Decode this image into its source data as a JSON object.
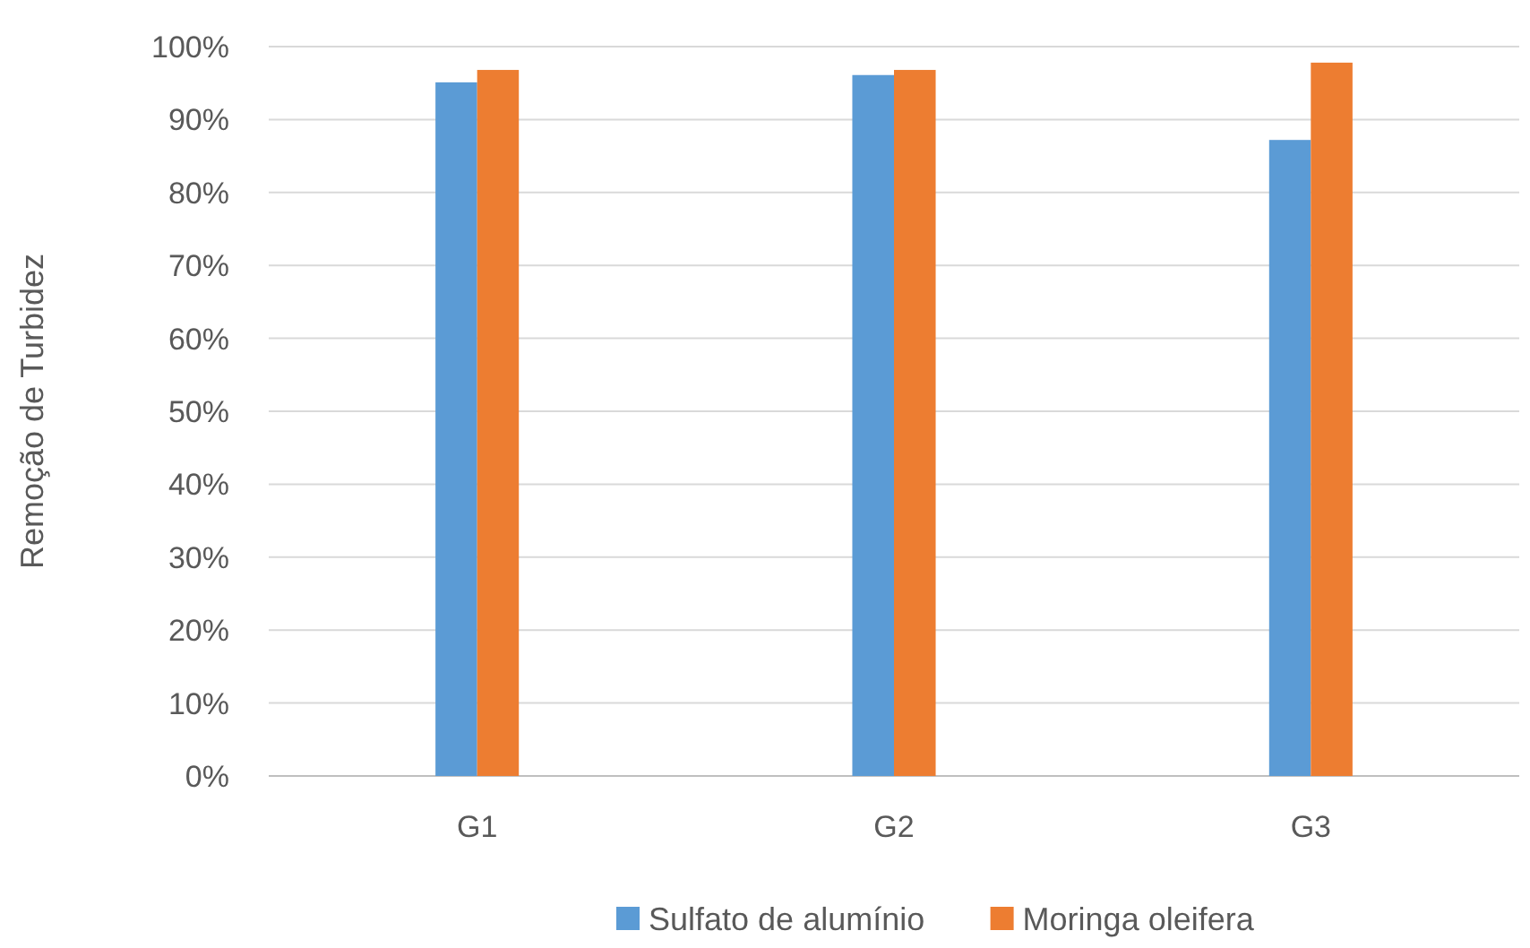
{
  "chart_data": {
    "type": "bar",
    "ylabel": "Remoção de Turbidez",
    "categories": [
      "G1",
      "G2",
      "G3"
    ],
    "series": [
      {
        "name": "Sulfato de alumínio",
        "color": "#5b9bd5",
        "values": [
          95.1,
          96.1,
          87.2
        ]
      },
      {
        "name": "Moringa oleifera",
        "color": "#ed7d31",
        "values": [
          96.8,
          96.8,
          97.8
        ]
      }
    ],
    "ylim": [
      0,
      100
    ],
    "yticks": [
      {
        "value": 0,
        "label": "0%"
      },
      {
        "value": 10,
        "label": "10%"
      },
      {
        "value": 20,
        "label": "20%"
      },
      {
        "value": 30,
        "label": "30%"
      },
      {
        "value": 40,
        "label": "40%"
      },
      {
        "value": 50,
        "label": "50%"
      },
      {
        "value": 60,
        "label": "60%"
      },
      {
        "value": 70,
        "label": "70%"
      },
      {
        "value": 80,
        "label": "80%"
      },
      {
        "value": 90,
        "label": "90%"
      },
      {
        "value": 100,
        "label": "100%"
      }
    ],
    "grid": "y",
    "legend": "bottom"
  }
}
